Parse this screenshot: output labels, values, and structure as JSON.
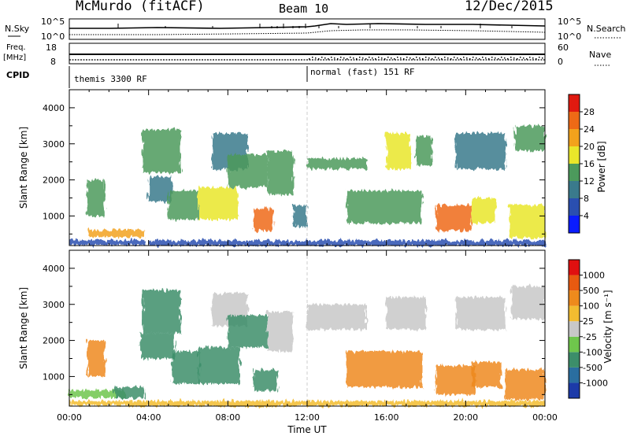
{
  "header": {
    "station": "McMurdo (fitACF)",
    "beam": "Beam 10",
    "date": "12/Dec/2015"
  },
  "aux": {
    "nsky_label": "N.Sky",
    "nsky_ticks": [
      "10^5",
      "10^0"
    ],
    "nsearch_label": "N.Search",
    "nsearch_ticks": [
      "10^5",
      "10^0"
    ],
    "freq_label": "Freq.",
    "freq_unit": "[MHz]",
    "freq_ticks": [
      "18",
      "8"
    ],
    "nave_label": "Nave",
    "nave_ticks": [
      "60",
      "0"
    ],
    "cpid_label": "CPID",
    "cpid_segments": [
      {
        "label": "themis 3300 RF",
        "start_hour": 0,
        "end_hour": 12
      },
      {
        "label": "normal (fast) 151 RF",
        "start_hour": 12,
        "end_hour": 24
      }
    ]
  },
  "chart_data": [
    {
      "type": "heatmap",
      "name": "power",
      "title": "",
      "ylabel": "Slant Range [km]",
      "xlabel": "",
      "ylim": [
        180,
        4500
      ],
      "xlim": [
        0,
        24
      ],
      "yticks": [
        1000,
        2000,
        3000,
        4000
      ],
      "colorbar": {
        "label": "Power [dB]",
        "ticks": [
          "4",
          "8",
          "12",
          "16",
          "20",
          "24",
          "28"
        ],
        "colors": [
          "#0a1cff",
          "#2a4fb0",
          "#3a7a8c",
          "#4c9a5c",
          "#e9e62a",
          "#f2a21c",
          "#ee6a16",
          "#e01a10"
        ]
      },
      "patches": [
        {
          "t0": 0.0,
          "t1": 3.8,
          "r0": 200,
          "r1": 330,
          "value": 6
        },
        {
          "t0": 1.0,
          "t1": 3.8,
          "r0": 420,
          "r1": 620,
          "value": 20
        },
        {
          "t0": 0.9,
          "t1": 1.8,
          "r0": 1000,
          "r1": 2000,
          "value": 12
        },
        {
          "t0": 3.7,
          "t1": 5.6,
          "r0": 2200,
          "r1": 3400,
          "value": 14
        },
        {
          "t0": 4.0,
          "t1": 5.2,
          "r0": 1400,
          "r1": 2100,
          "value": 10
        },
        {
          "t0": 5.0,
          "t1": 6.5,
          "r0": 900,
          "r1": 1700,
          "value": 14
        },
        {
          "t0": 6.5,
          "t1": 8.5,
          "r0": 900,
          "r1": 1800,
          "value": 16
        },
        {
          "t0": 7.2,
          "t1": 9.0,
          "r0": 2300,
          "r1": 3300,
          "value": 10
        },
        {
          "t0": 8.0,
          "t1": 10.0,
          "r0": 1800,
          "r1": 2700,
          "value": 12
        },
        {
          "t0": 9.3,
          "t1": 10.3,
          "r0": 600,
          "r1": 1200,
          "value": 26
        },
        {
          "t0": 10.0,
          "t1": 11.3,
          "r0": 1600,
          "r1": 2800,
          "value": 14
        },
        {
          "t0": 11.3,
          "t1": 12.0,
          "r0": 700,
          "r1": 1300,
          "value": 10
        },
        {
          "t0": 12.0,
          "t1": 15.0,
          "r0": 2300,
          "r1": 2600,
          "value": 12
        },
        {
          "t0": 14.0,
          "t1": 17.8,
          "r0": 800,
          "r1": 1700,
          "value": 14
        },
        {
          "t0": 16.0,
          "t1": 17.2,
          "r0": 2300,
          "r1": 3300,
          "value": 16
        },
        {
          "t0": 17.5,
          "t1": 18.3,
          "r0": 2400,
          "r1": 3200,
          "value": 12
        },
        {
          "t0": 18.5,
          "t1": 20.3,
          "r0": 600,
          "r1": 1300,
          "value": 24
        },
        {
          "t0": 20.3,
          "t1": 21.5,
          "r0": 800,
          "r1": 1500,
          "value": 18
        },
        {
          "t0": 19.5,
          "t1": 22.0,
          "r0": 2300,
          "r1": 3300,
          "value": 10
        },
        {
          "t0": 22.2,
          "t1": 24.0,
          "r0": 400,
          "r1": 1300,
          "value": 16
        },
        {
          "t0": 22.5,
          "t1": 24.0,
          "r0": 2800,
          "r1": 3500,
          "value": 12
        },
        {
          "t0": 4.0,
          "t1": 24.0,
          "r0": 180,
          "r1": 320,
          "value": 6
        }
      ]
    },
    {
      "type": "heatmap",
      "name": "velocity",
      "title": "",
      "ylabel": "Slant Range [km]",
      "xlabel": "Time UT",
      "ylim": [
        180,
        4500
      ],
      "xlim": [
        0,
        24
      ],
      "yticks": [
        1000,
        2000,
        3000,
        4000
      ],
      "xticks": [
        "00:00",
        "04:00",
        "08:00",
        "12:00",
        "16:00",
        "20:00",
        "00:00"
      ],
      "colorbar": {
        "label": "Velocity [m s⁻¹]",
        "ticks": [
          "1000",
          "500",
          "100",
          "25",
          "-25",
          "-100",
          "-500",
          "-1000"
        ],
        "colors": [
          "#1c3aa8",
          "#2a6ea0",
          "#3c8e6a",
          "#6fc64c",
          "#c8c8c8",
          "#f2bc30",
          "#ee8a1c",
          "#e85a10",
          "#e01010"
        ]
      },
      "patches": [
        {
          "t0": 0.0,
          "t1": 3.0,
          "r0": 200,
          "r1": 320,
          "value": -60
        },
        {
          "t0": 0.0,
          "t1": 2.8,
          "r0": 420,
          "r1": 620,
          "value": 60
        },
        {
          "t0": 0.9,
          "t1": 1.8,
          "r0": 1000,
          "r1": 2000,
          "value": -300
        },
        {
          "t0": 2.3,
          "t1": 3.8,
          "r0": 400,
          "r1": 700,
          "value": 200
        },
        {
          "t0": 3.7,
          "t1": 5.6,
          "r0": 2200,
          "r1": 3400,
          "value": 300
        },
        {
          "t0": 3.6,
          "t1": 5.3,
          "r0": 1500,
          "r1": 2200,
          "value": 200
        },
        {
          "t0": 5.2,
          "t1": 6.6,
          "r0": 800,
          "r1": 1700,
          "value": 200
        },
        {
          "t0": 6.5,
          "t1": 8.6,
          "r0": 800,
          "r1": 1800,
          "value": 200
        },
        {
          "t0": 7.2,
          "t1": 9.0,
          "r0": 2400,
          "r1": 3300,
          "value": 0
        },
        {
          "t0": 8.0,
          "t1": 10.0,
          "r0": 1800,
          "r1": 2700,
          "value": 200
        },
        {
          "t0": 9.3,
          "t1": 10.5,
          "r0": 600,
          "r1": 1200,
          "value": 200
        },
        {
          "t0": 10.0,
          "t1": 11.3,
          "r0": 1700,
          "r1": 2800,
          "value": 0
        },
        {
          "t0": 12.0,
          "t1": 15.0,
          "r0": 2300,
          "r1": 3000,
          "value": 0
        },
        {
          "t0": 14.0,
          "t1": 17.8,
          "r0": 700,
          "r1": 1700,
          "value": -300
        },
        {
          "t0": 16.0,
          "t1": 18.0,
          "r0": 2300,
          "r1": 3200,
          "value": 0
        },
        {
          "t0": 18.5,
          "t1": 20.5,
          "r0": 500,
          "r1": 1300,
          "value": -300
        },
        {
          "t0": 20.3,
          "t1": 21.8,
          "r0": 700,
          "r1": 1400,
          "value": -150
        },
        {
          "t0": 19.5,
          "t1": 22.0,
          "r0": 2300,
          "r1": 3200,
          "value": 0
        },
        {
          "t0": 22.0,
          "t1": 24.0,
          "r0": 350,
          "r1": 1200,
          "value": -300
        },
        {
          "t0": 22.3,
          "t1": 24.0,
          "r0": 2600,
          "r1": 3500,
          "value": 0
        },
        {
          "t0": 3.0,
          "t1": 24.0,
          "r0": 180,
          "r1": 320,
          "value": -60
        }
      ]
    }
  ]
}
